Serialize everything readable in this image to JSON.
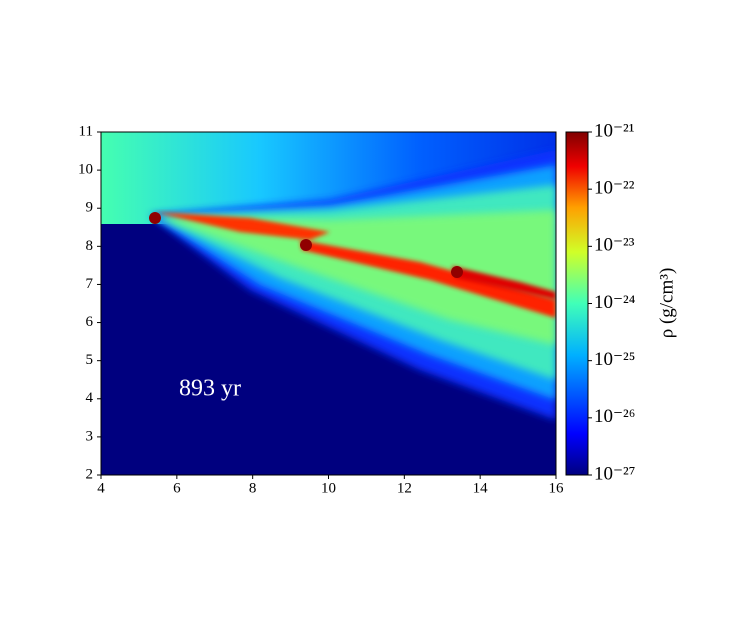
{
  "chart_data": {
    "type": "heatmap",
    "annotation": "893 yr",
    "xlim": [
      4,
      16
    ],
    "xticks": [
      4,
      6,
      8,
      10,
      12,
      14,
      16
    ],
    "ylim": [
      2,
      11
    ],
    "yticks": [
      2,
      3,
      4,
      5,
      6,
      7,
      8,
      9,
      10,
      11
    ],
    "colorbar": {
      "label": "ρ (g/cm³)",
      "log": true,
      "lim": [
        1e-27,
        1e-21
      ],
      "ticks": [
        {
          "value": 1e-21,
          "label": "10⁻²¹"
        },
        {
          "value": 1e-22,
          "label": "10⁻²²"
        },
        {
          "value": 1e-23,
          "label": "10⁻²³"
        },
        {
          "value": 1e-24,
          "label": "10⁻²⁴"
        },
        {
          "value": 1e-25,
          "label": "10⁻²⁵"
        },
        {
          "value": 1e-26,
          "label": "10⁻²⁶"
        },
        {
          "value": 1e-27,
          "label": "10⁻²⁷"
        }
      ]
    }
  }
}
